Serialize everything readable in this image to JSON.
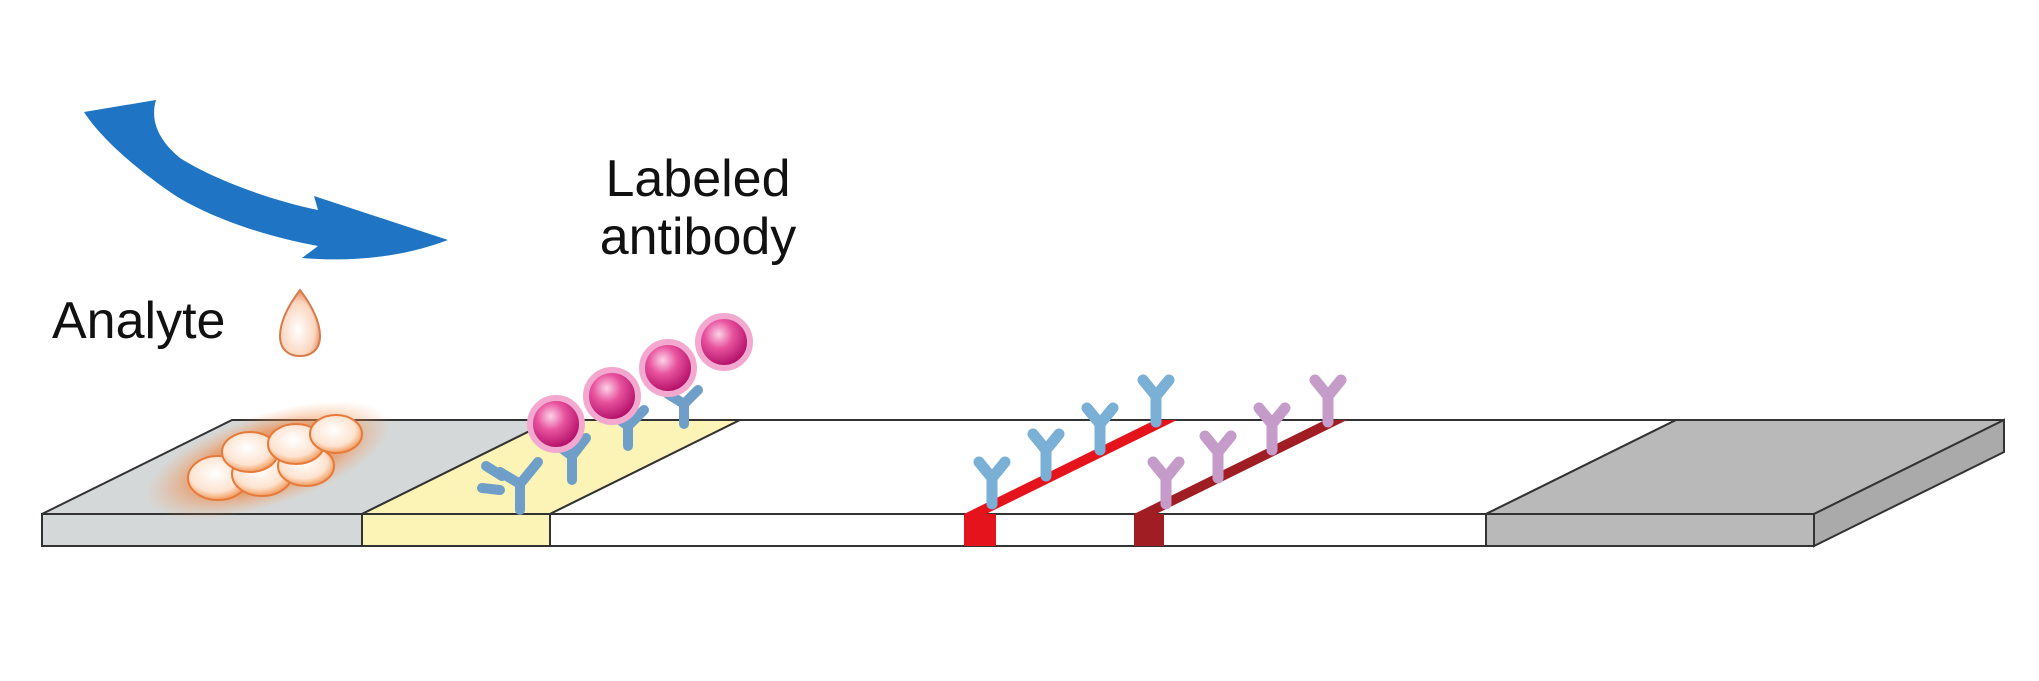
{
  "labels": {
    "analyte": "Analyte",
    "labeled_antibody_line1": "Labeled",
    "labeled_antibody_line2": "antibody"
  },
  "icons": {
    "flow_arrow": "curved-arrow-icon",
    "analyte_drop": "droplet-icon",
    "labeled_antibody": "labeled-antibody-icon",
    "capture_antibody": "y-antibody-icon"
  },
  "colors": {
    "arrow": "#1f74c4",
    "sample_pad": "#d5d8d8",
    "conjugate_pad": "#fbf4b6",
    "membrane": "#ffffff",
    "absorbent_pad": "#b8b9b8",
    "test_line": "#e5141c",
    "control_line": "#a01d24",
    "capture_antibody": "#7aafd6",
    "control_antibody": "#c49bc9",
    "label_particle": "#e0358e",
    "analyte_blob": "#f7a46b"
  }
}
